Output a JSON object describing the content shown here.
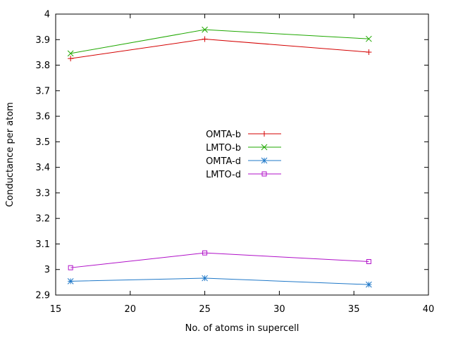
{
  "chart_data": {
    "type": "line",
    "xlabel": "No. of atoms in supercell",
    "ylabel": "Conductance per atom",
    "xlim": [
      15,
      40
    ],
    "ylim": [
      2.9,
      4.0
    ],
    "xticks": [
      15,
      20,
      25,
      30,
      35,
      40
    ],
    "yticks": [
      2.9,
      3.0,
      3.1,
      3.2,
      3.3,
      3.4,
      3.5,
      3.6,
      3.7,
      3.8,
      3.9,
      4.0
    ],
    "xtick_labels": [
      "15",
      "20",
      "25",
      "30",
      "35",
      "40"
    ],
    "ytick_labels": [
      "2.9",
      "3",
      "3.1",
      "3.2",
      "3.3",
      "3.4",
      "3.5",
      "3.6",
      "3.7",
      "3.8",
      "3.9",
      "4"
    ],
    "grid": false,
    "legend_position": "center",
    "series": [
      {
        "name": "OMTA-b",
        "color": "#d40000",
        "marker": "plus",
        "x": [
          16,
          25,
          36
        ],
        "y": [
          3.826,
          3.902,
          3.851
        ]
      },
      {
        "name": "LMTO-b",
        "color": "#1fa800",
        "marker": "cross",
        "x": [
          16,
          25,
          36
        ],
        "y": [
          3.846,
          3.939,
          3.903
        ]
      },
      {
        "name": "OMTA-d",
        "color": "#1f78c8",
        "marker": "asterisk",
        "x": [
          16,
          25,
          36
        ],
        "y": [
          2.954,
          2.966,
          2.941
        ]
      },
      {
        "name": "LMTO-d",
        "color": "#b010c8",
        "marker": "square",
        "x": [
          16,
          25,
          36
        ],
        "y": [
          3.007,
          3.065,
          3.031
        ]
      }
    ]
  }
}
